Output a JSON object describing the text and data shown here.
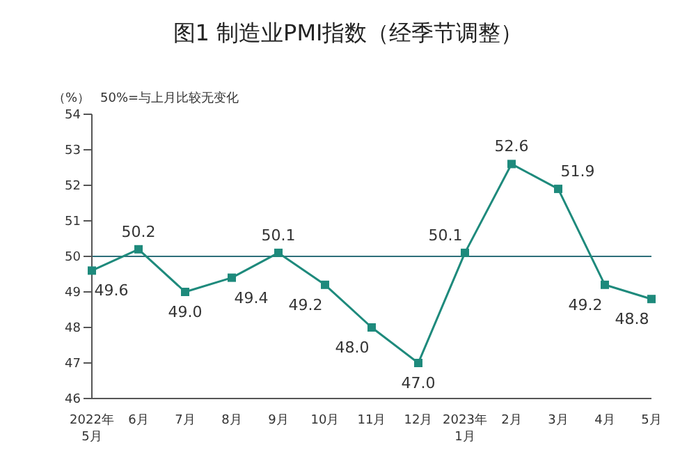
{
  "chart_data": {
    "type": "line",
    "title": "图1  制造业PMI指数（经季节调整）",
    "ylabel": "（%）",
    "annotations": [
      "50%=与上月比较无变化"
    ],
    "categories": [
      "2022年\n5月",
      "6月",
      "7月",
      "8月",
      "9月",
      "10月",
      "11月",
      "12月",
      "2023年\n1月",
      "2月",
      "3月",
      "4月",
      "5月"
    ],
    "series": [
      {
        "color": "#1e8a7c",
        "values": [
          49.6,
          50.2,
          49.0,
          49.4,
          50.1,
          49.2,
          48.0,
          47.0,
          50.1,
          52.6,
          51.9,
          49.2,
          48.8
        ],
        "value_labels": [
          "49.6",
          "50.2",
          "49.0",
          "49.4",
          "50.1",
          "49.2",
          "48.0",
          "47.0",
          "50.1",
          "52.6",
          "51.9",
          "49.2",
          "48.8"
        ]
      }
    ],
    "ylim": [
      46,
      54
    ],
    "yticks": [
      46,
      47,
      48,
      49,
      50,
      51,
      52,
      53,
      54
    ],
    "grid": false,
    "legend": false,
    "marker": "square",
    "line_style": "solid",
    "ref_lines": [
      {
        "axis": "y",
        "value": 50,
        "color": "#2e6f7a"
      }
    ]
  }
}
